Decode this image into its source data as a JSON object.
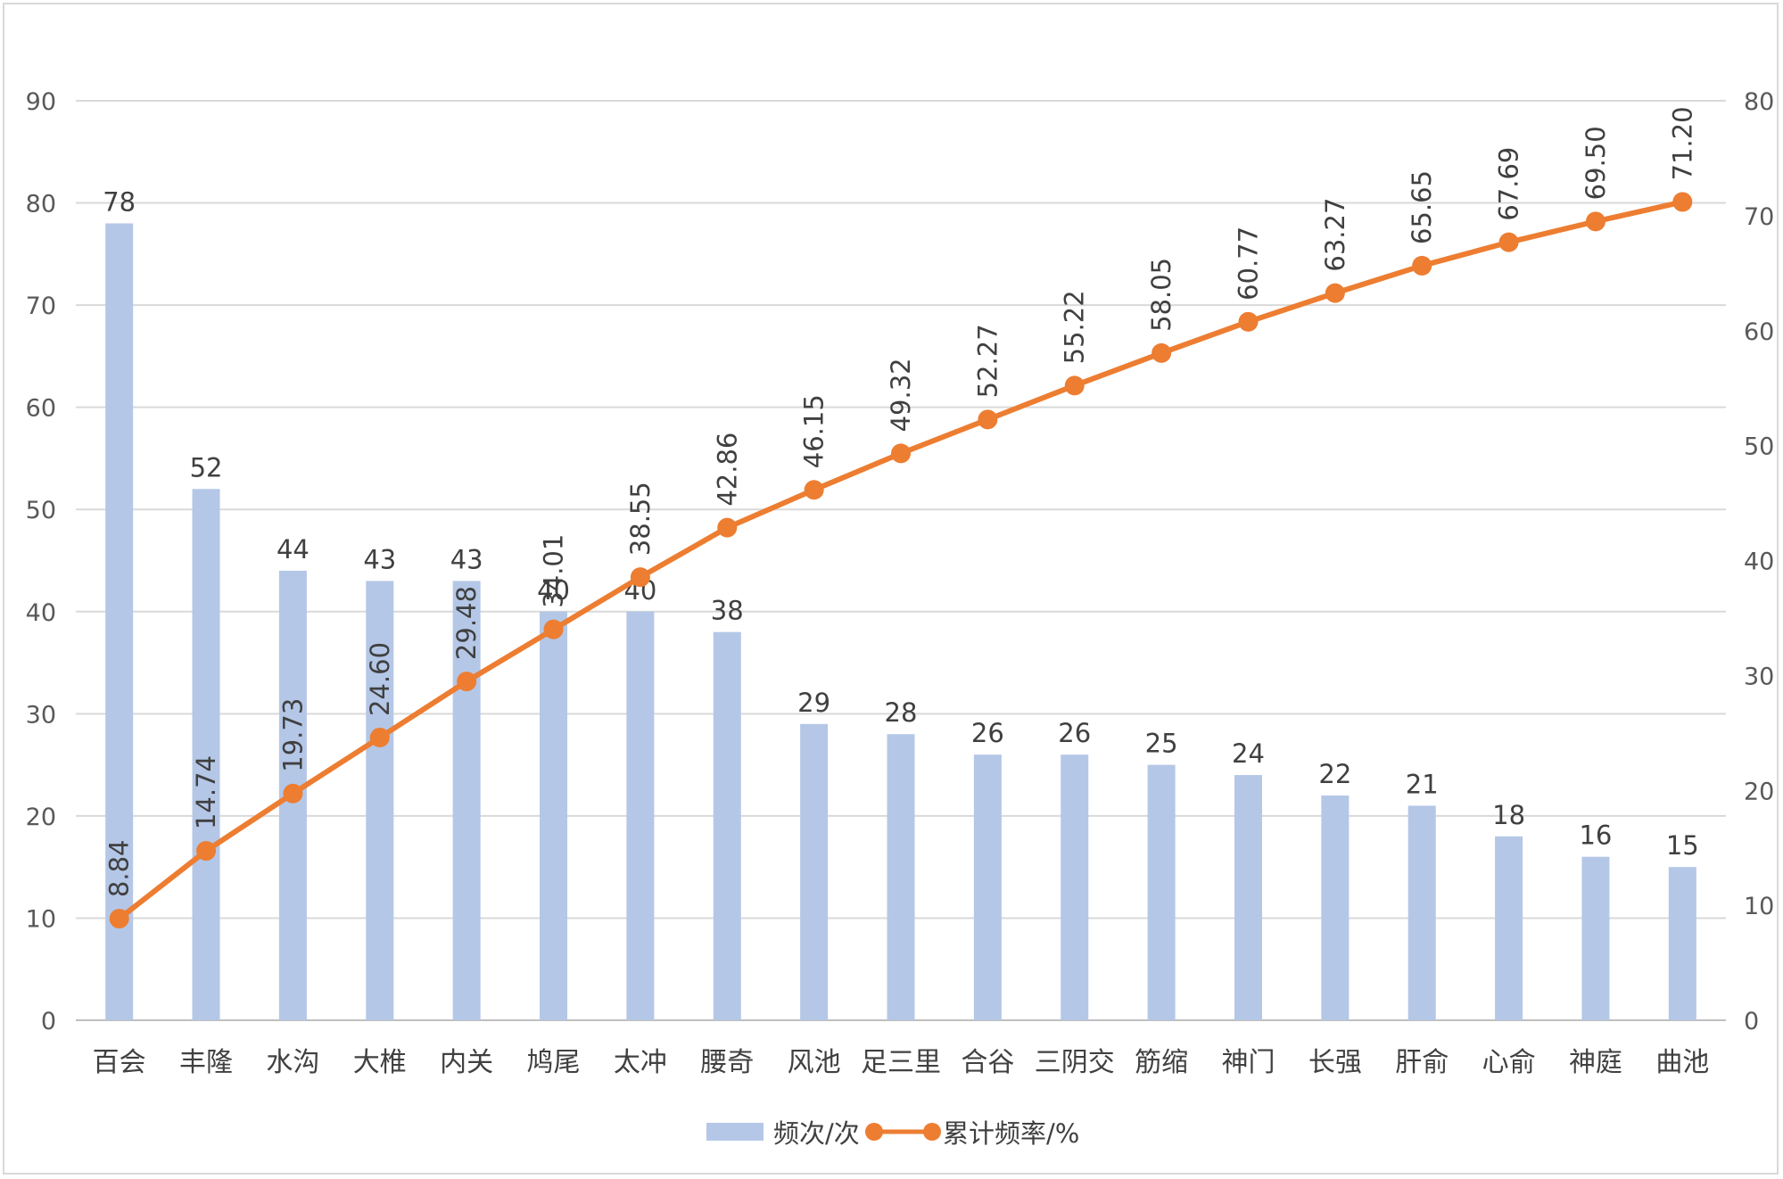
{
  "chart_data": {
    "type": "bar+line",
    "title": "",
    "categories": [
      "百会",
      "丰隆",
      "水沟",
      "大椎",
      "内关",
      "鸠尾",
      "太冲",
      "腰奇",
      "风池",
      "足三里",
      "合谷",
      "三阴交",
      "筋缩",
      "神门",
      "长强",
      "肝俞",
      "心俞",
      "神庭",
      "曲池"
    ],
    "series": [
      {
        "name": "频次/次",
        "type": "bar",
        "axis": "left",
        "color": "#b4c7e7",
        "values": [
          78,
          52,
          44,
          43,
          43,
          40,
          40,
          38,
          29,
          28,
          26,
          26,
          25,
          24,
          22,
          21,
          18,
          16,
          15
        ],
        "labels": [
          "78",
          "52",
          "44",
          "43",
          "43",
          "40",
          "40",
          "38",
          "29",
          "28",
          "26",
          "26",
          "25",
          "24",
          "22",
          "21",
          "18",
          "16",
          "15"
        ]
      },
      {
        "name": "累计频率/%",
        "type": "line",
        "axis": "right",
        "color": "#ed7d31",
        "values": [
          8.84,
          14.74,
          19.73,
          24.6,
          29.48,
          34.01,
          38.55,
          42.86,
          46.15,
          49.32,
          52.27,
          55.22,
          58.05,
          60.77,
          63.27,
          65.65,
          67.69,
          69.5,
          71.2
        ],
        "labels": [
          "8.84",
          "14.74",
          "19.73",
          "24.60",
          "29.48",
          "34.01",
          "38.55",
          "42.86",
          "46.15",
          "49.32",
          "52.27",
          "55.22",
          "58.05",
          "60.77",
          "63.27",
          "65.65",
          "67.69",
          "69.50",
          "71.20"
        ]
      }
    ],
    "left_axis": {
      "min": 0,
      "max": 90,
      "ticks": [
        "0",
        "10",
        "20",
        "30",
        "40",
        "50",
        "60",
        "70",
        "80",
        "90"
      ]
    },
    "right_axis": {
      "min": 0,
      "max": 80,
      "ticks": [
        "0",
        "10",
        "20",
        "30",
        "40",
        "50",
        "60",
        "70",
        "80"
      ]
    },
    "grid": true,
    "legend_position": "bottom"
  }
}
